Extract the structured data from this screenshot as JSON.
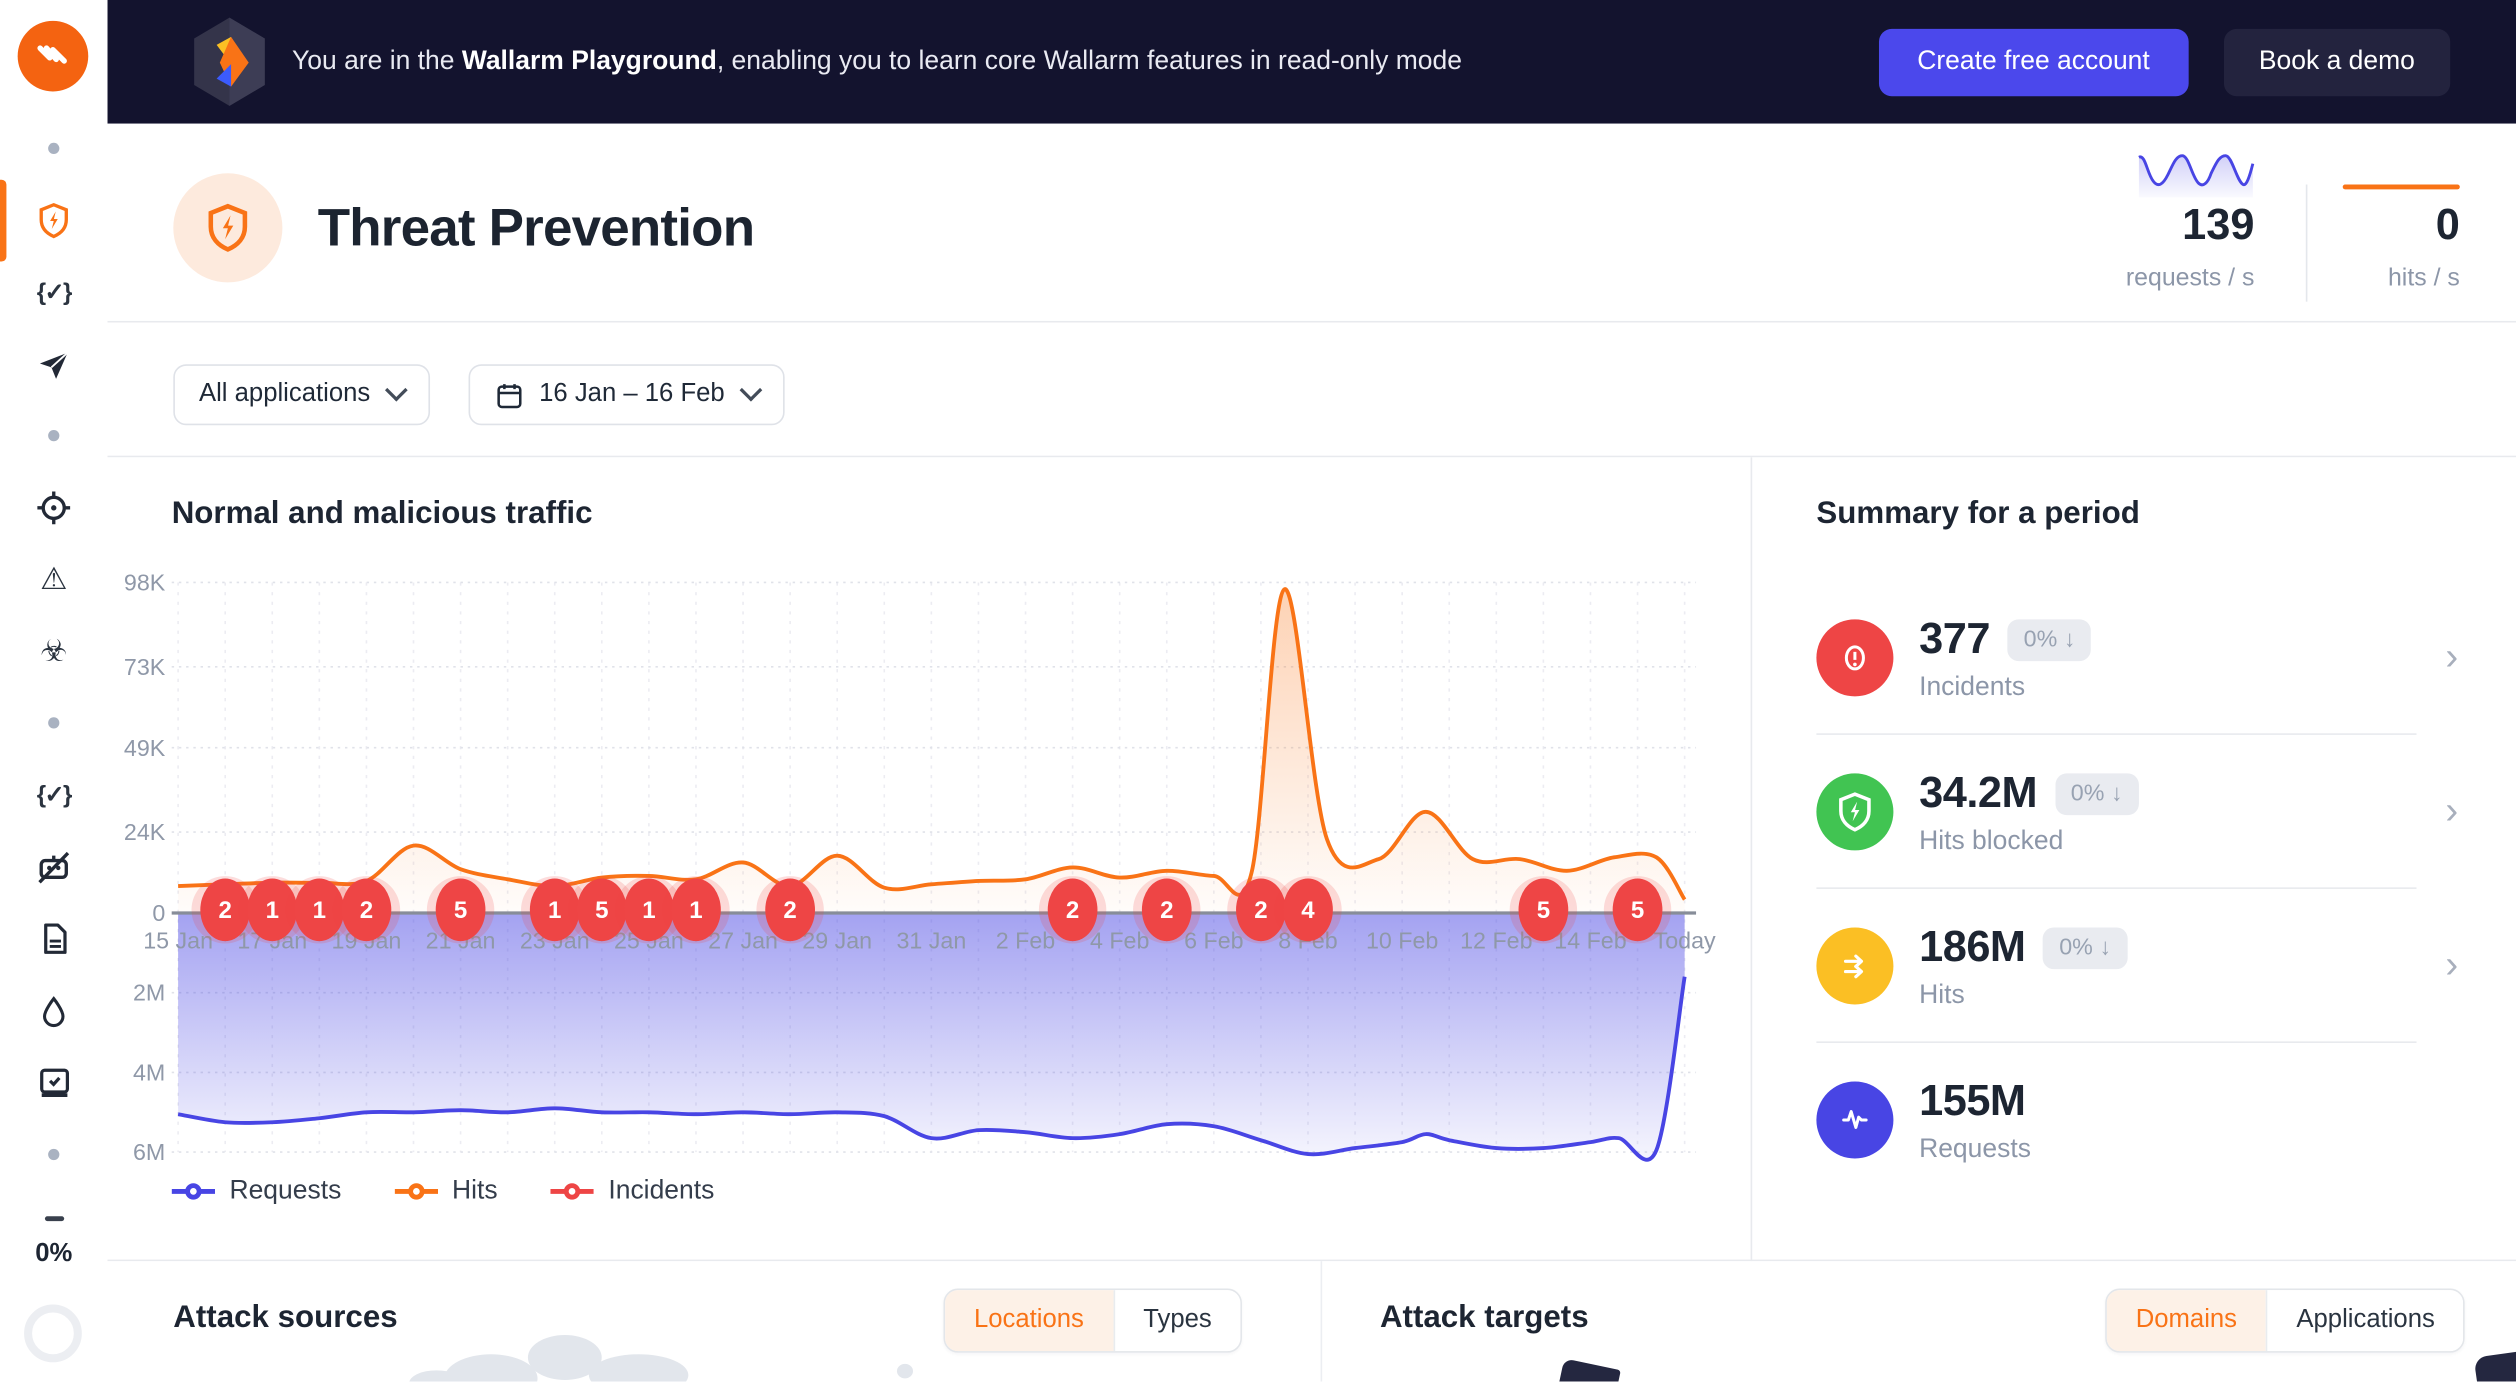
{
  "banner": {
    "text_prefix": "You are in the ",
    "text_bold": "Wallarm Playground",
    "text_suffix": ", enabling you to learn core Wallarm features in read-only mode",
    "create_button": "Create free account",
    "demo_button": "Book a demo"
  },
  "sidebar": {
    "icons": [
      "dot",
      "shield-bolt-active",
      "braces-check",
      "paper-plane",
      "dot",
      "crosshair",
      "warning-triangle",
      "biohazard",
      "dot",
      "braces-check",
      "robot-off",
      "document",
      "droplet",
      "book-check",
      "dot",
      "dash"
    ],
    "progress": "0%"
  },
  "header": {
    "title": "Threat Prevention",
    "requests_per_s": {
      "value": "139",
      "unit": "requests / s"
    },
    "hits_per_s": {
      "value": "0",
      "unit": "hits / s"
    }
  },
  "filters": {
    "applications": "All applications",
    "date_range": "16 Jan – 16 Feb"
  },
  "traffic": {
    "title": "Normal and malicious traffic",
    "legend": [
      {
        "label": "Requests",
        "color": "#4845e4"
      },
      {
        "label": "Hits",
        "color": "#f97316"
      },
      {
        "label": "Incidents",
        "color": "#ee4545"
      }
    ]
  },
  "chart_data": {
    "type": "line",
    "title": "Normal and malicious traffic",
    "x_axis": {
      "start_day_label": "15 Jan",
      "end_day_label": "Today",
      "days_total": 32,
      "ticks": [
        {
          "day": 0,
          "label": "15 Jan"
        },
        {
          "day": 2,
          "label": "17 Jan"
        },
        {
          "day": 4,
          "label": "19 Jan"
        },
        {
          "day": 6,
          "label": "21 Jan"
        },
        {
          "day": 8,
          "label": "23 Jan"
        },
        {
          "day": 10,
          "label": "25 Jan"
        },
        {
          "day": 12,
          "label": "27 Jan"
        },
        {
          "day": 14,
          "label": "29 Jan"
        },
        {
          "day": 16,
          "label": "31 Jan"
        },
        {
          "day": 18,
          "label": "2 Feb"
        },
        {
          "day": 20,
          "label": "4 Feb"
        },
        {
          "day": 22,
          "label": "6 Feb"
        },
        {
          "day": 24,
          "label": "8 Feb"
        },
        {
          "day": 26,
          "label": "10 Feb"
        },
        {
          "day": 28,
          "label": "12 Feb"
        },
        {
          "day": 30,
          "label": "14 Feb"
        },
        {
          "day": 32,
          "label": "Today"
        }
      ]
    },
    "y_axis_hits": {
      "unit": "hits",
      "max": 98,
      "ticks": [
        {
          "value": 98,
          "label": "98K"
        },
        {
          "value": 73,
          "label": "73K"
        },
        {
          "value": 49,
          "label": "49K"
        },
        {
          "value": 24,
          "label": "24K"
        },
        {
          "value": 0,
          "label": "0"
        }
      ]
    },
    "y_axis_requests": {
      "unit": "requests",
      "direction": "down",
      "max": 6,
      "ticks": [
        {
          "value": 2,
          "label": "2M"
        },
        {
          "value": 4,
          "label": "4M"
        },
        {
          "value": 6,
          "label": "6M"
        }
      ]
    },
    "series": [
      {
        "name": "Hits",
        "color": "#f97316",
        "unit": "K hits/day",
        "points": [
          [
            0,
            8
          ],
          [
            1,
            8.5
          ],
          [
            2,
            9
          ],
          [
            3,
            9
          ],
          [
            4,
            9.5
          ],
          [
            5,
            20
          ],
          [
            6,
            13
          ],
          [
            7,
            10
          ],
          [
            8,
            8
          ],
          [
            9,
            10.5
          ],
          [
            10,
            11
          ],
          [
            11,
            10
          ],
          [
            12,
            15
          ],
          [
            13,
            8
          ],
          [
            14,
            17
          ],
          [
            15,
            7.5
          ],
          [
            16,
            8.5
          ],
          [
            17,
            9.5
          ],
          [
            18,
            10
          ],
          [
            19,
            13.5
          ],
          [
            20,
            10.5
          ],
          [
            21,
            12.5
          ],
          [
            22,
            11
          ],
          [
            22.8,
            12
          ],
          [
            23.5,
            96
          ],
          [
            24.4,
            22
          ],
          [
            25.5,
            16
          ],
          [
            26.5,
            30
          ],
          [
            27.5,
            16
          ],
          [
            28.5,
            16
          ],
          [
            29.5,
            12.5
          ],
          [
            30.5,
            16.5
          ],
          [
            31.4,
            16.5
          ],
          [
            32,
            4
          ]
        ]
      },
      {
        "name": "Requests",
        "color": "#4845e4",
        "unit": "M requests/day",
        "points": [
          [
            0,
            5.05
          ],
          [
            1,
            5.25
          ],
          [
            2,
            5.25
          ],
          [
            3,
            5.15
          ],
          [
            4,
            5.0
          ],
          [
            5,
            5.0
          ],
          [
            6,
            4.95
          ],
          [
            7,
            5.0
          ],
          [
            8,
            4.9
          ],
          [
            9,
            5.0
          ],
          [
            10,
            5.0
          ],
          [
            11,
            5.05
          ],
          [
            12,
            5.0
          ],
          [
            13,
            5.05
          ],
          [
            14,
            5.0
          ],
          [
            15,
            5.1
          ],
          [
            16,
            5.65
          ],
          [
            17,
            5.45
          ],
          [
            18,
            5.5
          ],
          [
            19,
            5.65
          ],
          [
            20,
            5.55
          ],
          [
            21,
            5.3
          ],
          [
            22,
            5.35
          ],
          [
            23,
            5.7
          ],
          [
            24,
            6.05
          ],
          [
            25,
            5.9
          ],
          [
            26,
            5.75
          ],
          [
            26.5,
            5.55
          ],
          [
            27,
            5.7
          ],
          [
            28,
            5.9
          ],
          [
            29,
            5.9
          ],
          [
            30,
            5.75
          ],
          [
            30.6,
            5.65
          ],
          [
            31.4,
            5.95
          ],
          [
            32,
            1.6
          ]
        ]
      }
    ],
    "incidents": {
      "name": "Incidents",
      "color": "#ee4545",
      "points": [
        {
          "day": 1,
          "count": 2
        },
        {
          "day": 2,
          "count": 1
        },
        {
          "day": 3,
          "count": 1
        },
        {
          "day": 4,
          "count": 2
        },
        {
          "day": 6,
          "count": 5
        },
        {
          "day": 8,
          "count": 1
        },
        {
          "day": 9,
          "count": 5
        },
        {
          "day": 10,
          "count": 1
        },
        {
          "day": 11,
          "count": 1
        },
        {
          "day": 13,
          "count": 2
        },
        {
          "day": 19,
          "count": 2
        },
        {
          "day": 21,
          "count": 2
        },
        {
          "day": 23,
          "count": 2
        },
        {
          "day": 24,
          "count": 4
        },
        {
          "day": 29,
          "count": 5
        },
        {
          "day": 31,
          "count": 5
        }
      ]
    },
    "legend_position": "bottom",
    "grid": true
  },
  "summary": {
    "title": "Summary for a period",
    "items": [
      {
        "value": "377",
        "delta": "0% ↓",
        "label": "Incidents",
        "color": "#ee4545",
        "icon": "alert-circle"
      },
      {
        "value": "34.2M",
        "delta": "0% ↓",
        "label": "Hits blocked",
        "color": "#41c452",
        "icon": "shield-bolt"
      },
      {
        "value": "186M",
        "delta": "0% ↓",
        "label": "Hits",
        "color": "#fbbf24",
        "icon": "double-arrow-right"
      },
      {
        "value": "155M",
        "delta": "",
        "label": "Requests",
        "color": "#4845e4",
        "icon": "pulse"
      }
    ]
  },
  "attack_sources": {
    "title": "Attack sources",
    "tab_locations": "Locations",
    "tab_types": "Types",
    "active": "Locations"
  },
  "attack_targets": {
    "title": "Attack targets",
    "tab_domains": "Domains",
    "tab_applications": "Applications",
    "active": "Domains"
  }
}
